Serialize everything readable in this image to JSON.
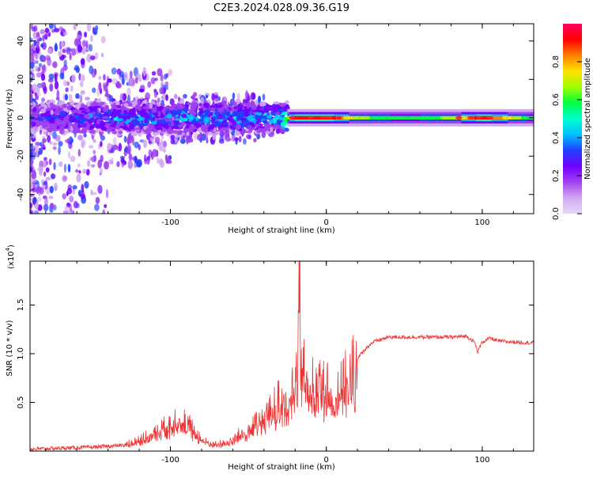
{
  "figure_title": "C2E3.2024.028.09.36.G19",
  "colors": {
    "snr_line": "#ee3333",
    "axis": "#000000",
    "colormap": [
      "#e8d8f8",
      "#d0a8f0",
      "#a040f0",
      "#7000ff",
      "#2040ff",
      "#00c0ff",
      "#00ffd0",
      "#00ff40",
      "#a0ff00",
      "#ffe000",
      "#ff8000",
      "#ff0000",
      "#ff0060"
    ]
  },
  "chart_data": [
    {
      "type": "heatmap",
      "title": "",
      "xlabel": "Height of straight line (km)",
      "ylabel": "Frequency (Hz)",
      "xlim": [
        -190,
        133
      ],
      "ylim": [
        -50,
        49
      ],
      "x_ticks": [
        -100,
        0,
        100
      ],
      "x_tick_labels": [
        "-100",
        "0",
        "100"
      ],
      "y_ticks": [
        -40,
        -20,
        0,
        20,
        40
      ],
      "y_tick_labels": [
        "-40",
        "-20",
        "0",
        "20",
        "40"
      ],
      "colorbar": {
        "label": "Normalized spectral amplitude",
        "range": [
          0,
          1
        ],
        "ticks": [
          0.0,
          0.2,
          0.4,
          0.6,
          0.8
        ],
        "tick_labels": [
          "0.0",
          "0.2",
          "0.4",
          "0.6",
          "0.8"
        ]
      },
      "description_points": {
        "ridge_height_km": [
          -185,
          -160,
          -130,
          -100,
          -80,
          -60,
          -40,
          -30,
          -20,
          -10,
          0,
          20,
          50,
          80,
          100,
          130
        ],
        "ridge_amplitude": [
          0.25,
          0.3,
          0.35,
          0.35,
          0.4,
          0.35,
          0.4,
          0.4,
          0.9,
          0.85,
          0.9,
          0.6,
          0.5,
          0.6,
          0.9,
          0.5
        ]
      }
    },
    {
      "type": "line",
      "title": "",
      "xlabel": "Height of straight line (km)",
      "ylabel": "SNR (10 * v/v)",
      "scale_note": "(x10",
      "scale_exp": "4",
      "scale_close": ")",
      "xlim": [
        -190,
        133
      ],
      "ylim": [
        0,
        1.95
      ],
      "x_ticks": [
        -100,
        0,
        100
      ],
      "x_tick_labels": [
        "-100",
        "0",
        "100"
      ],
      "y_ticks": [
        0.5,
        1.0,
        1.5
      ],
      "y_tick_labels": [
        "0.5",
        "1.0",
        "1.5"
      ],
      "series": [
        {
          "x": [
            -190,
            -170,
            -150,
            -130,
            -120,
            -110,
            -100,
            -95,
            -90,
            -85,
            -80,
            -75,
            -70,
            -60,
            -55,
            -50,
            -45,
            -40,
            -35,
            -30,
            -25,
            -20,
            -18,
            -17,
            -16,
            -14,
            -10,
            -5,
            0,
            5,
            10,
            15,
            20,
            25,
            30,
            40,
            50,
            60,
            70,
            80,
            90,
            95,
            97,
            100,
            105,
            110,
            120,
            133
          ],
          "y": [
            0.02,
            0.03,
            0.04,
            0.06,
            0.12,
            0.2,
            0.28,
            0.35,
            0.3,
            0.22,
            0.12,
            0.08,
            0.07,
            0.12,
            0.18,
            0.22,
            0.28,
            0.35,
            0.42,
            0.55,
            0.6,
            0.7,
            1.0,
            1.9,
            0.9,
            0.8,
            0.75,
            0.7,
            0.65,
            0.6,
            0.65,
            0.8,
            0.95,
            1.05,
            1.12,
            1.17,
            1.17,
            1.17,
            1.17,
            1.17,
            1.18,
            1.12,
            1.02,
            1.12,
            1.16,
            1.13,
            1.12,
            1.11
          ]
        }
      ]
    }
  ]
}
